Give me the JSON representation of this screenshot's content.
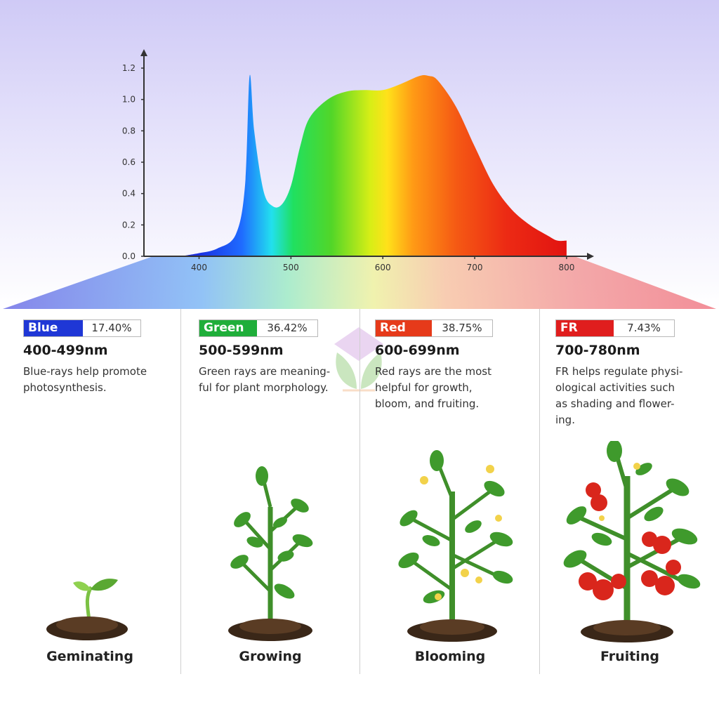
{
  "chart_data": {
    "type": "area",
    "x": [
      380,
      400,
      420,
      440,
      450,
      455,
      460,
      470,
      480,
      490,
      500,
      510,
      520,
      540,
      560,
      580,
      600,
      620,
      640,
      650,
      660,
      680,
      700,
      720,
      740,
      760,
      780,
      790,
      800
    ],
    "y": [
      0.0,
      0.02,
      0.05,
      0.14,
      0.45,
      1.15,
      0.8,
      0.42,
      0.32,
      0.33,
      0.45,
      0.7,
      0.88,
      1.0,
      1.05,
      1.06,
      1.06,
      1.1,
      1.15,
      1.15,
      1.12,
      0.95,
      0.7,
      0.46,
      0.3,
      0.2,
      0.13,
      0.1,
      0.1
    ],
    "xlim": [
      340,
      810
    ],
    "ylim": [
      0,
      1.2
    ],
    "x_ticks": [
      "400",
      "500",
      "600",
      "700",
      "800"
    ],
    "y_ticks": [
      "0.0",
      "0.2",
      "0.4",
      "0.6",
      "0.8",
      "1.0",
      "1.2"
    ],
    "grid": false,
    "fill": "rainbow-by-wavelength"
  },
  "colors": {
    "blue": "#1f37d6",
    "green": "#1fae3a",
    "red": "#e63a1a",
    "fr": "#e01e1e"
  },
  "bands": [
    {
      "name": "Blue",
      "percent": "17.40%",
      "range": "400-499nm",
      "description": "Blue-rays help promote\nphotosynthesis.",
      "stage": "Geminating",
      "color": "#1f37d6"
    },
    {
      "name": "Green",
      "percent": "36.42%",
      "range": "500-599nm",
      "description": "Green rays are meaning-\nful for plant morphology.",
      "stage": "Growing",
      "color": "#1fae3a"
    },
    {
      "name": "Red",
      "percent": "38.75%",
      "range": "600-699nm",
      "description": "Red rays are the most\nhelpful for growth,\nbloom, and fruiting.",
      "stage": "Blooming",
      "color": "#e63a1a"
    },
    {
      "name": "FR",
      "percent": "7.43%",
      "range": "700-780nm",
      "description": "FR helps regulate physi-\nological activities such\nas shading and flower-\ning.",
      "stage": "Fruiting",
      "color": "#e01e1e"
    }
  ],
  "icons": {
    "watermark": "leaf-logo-icon",
    "plants": [
      "seedling-icon",
      "growing-plant-icon",
      "blooming-plant-icon",
      "fruiting-tomato-plant-icon"
    ]
  }
}
